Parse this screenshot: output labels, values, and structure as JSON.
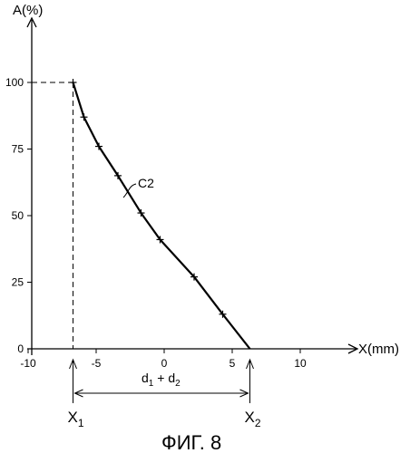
{
  "chart_data": {
    "type": "line",
    "xlabel": "X(mm)",
    "ylabel": "A(%)",
    "xlim": [
      -10,
      10
    ],
    "ylim": [
      0,
      100
    ],
    "x_ticks": [
      -10,
      -5,
      0,
      5,
      10
    ],
    "y_ticks": [
      0,
      25,
      50,
      75,
      100
    ],
    "x_tick_labels": [
      "-10",
      "-5",
      "0",
      "5",
      "10"
    ],
    "y_tick_labels": [
      "0",
      "25",
      "50",
      "75",
      "100"
    ],
    "grid": false,
    "series": [
      {
        "name": "C2",
        "x": [
          -6.7,
          -5.9,
          -4.8,
          -3.4,
          -1.7,
          -0.3,
          2.2,
          4.3,
          6.3
        ],
        "y": [
          100,
          87,
          76,
          65,
          51,
          41,
          27,
          13,
          0
        ]
      }
    ],
    "annotations": {
      "curve_label": "C2",
      "x1_label": "X",
      "x1_sub": "1",
      "x2_label": "X",
      "x2_sub": "2",
      "x1_value": -6.7,
      "x2_value": 6.3,
      "span_label_d": "d",
      "span_sub_1": "1",
      "span_plus": " + d",
      "span_sub_2": "2"
    },
    "caption": "ФИГ. 8"
  }
}
